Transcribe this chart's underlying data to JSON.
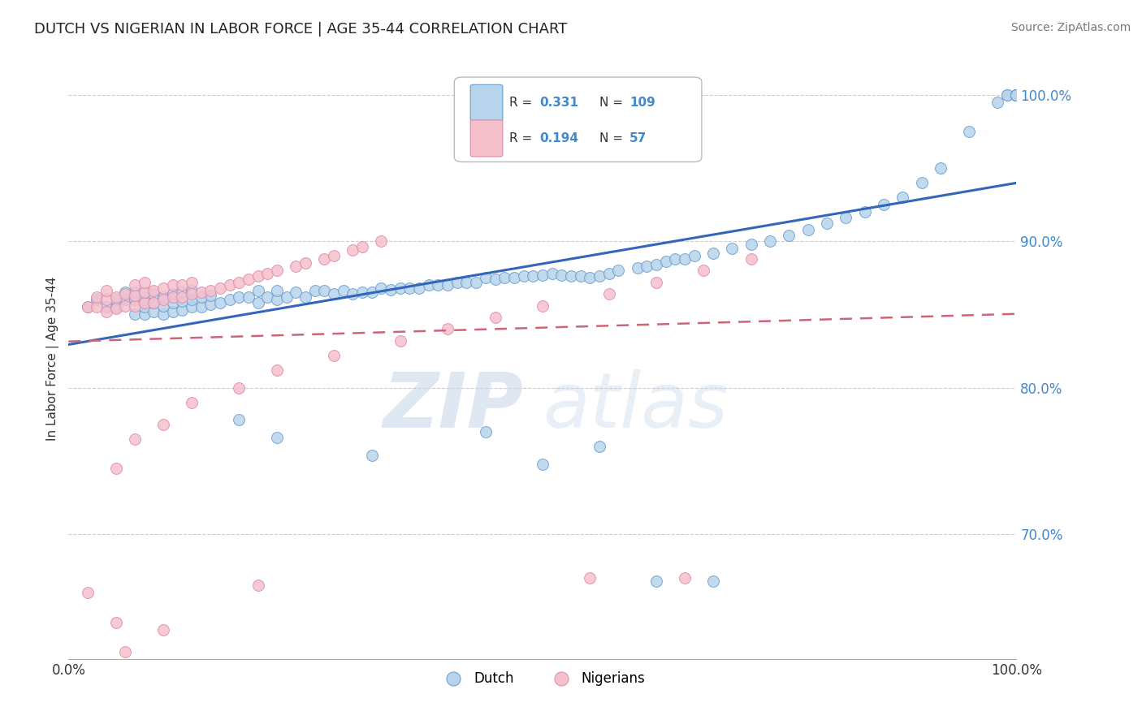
{
  "title": "DUTCH VS NIGERIAN IN LABOR FORCE | AGE 35-44 CORRELATION CHART",
  "source": "Source: ZipAtlas.com",
  "ylabel": "In Labor Force | Age 35-44",
  "xlim": [
    0.0,
    1.0
  ],
  "ylim": [
    0.615,
    1.025
  ],
  "y_ticks": [
    0.7,
    0.8,
    0.9,
    1.0
  ],
  "y_tick_labels": [
    "70.0%",
    "80.0%",
    "90.0%",
    "100.0%"
  ],
  "x_tick_labels": [
    "0.0%",
    "100.0%"
  ],
  "watermark_zip": "ZIP",
  "watermark_atlas": "atlas",
  "dutch_R": 0.331,
  "dutch_N": 109,
  "nigerian_R": 0.194,
  "nigerian_N": 57,
  "dutch_color": "#b8d4ec",
  "dutch_edge": "#6699cc",
  "nigerian_color": "#f5c0cc",
  "nigerian_edge": "#dd88aa",
  "dutch_line_color": "#3366bb",
  "nigerian_line_color": "#cc6677",
  "tick_color": "#4488cc",
  "title_color": "#222222",
  "source_color": "#777777",
  "dot_size": 100,
  "dutch_scatter_x": [
    0.02,
    0.03,
    0.04,
    0.05,
    0.05,
    0.06,
    0.06,
    0.07,
    0.07,
    0.07,
    0.08,
    0.08,
    0.08,
    0.08,
    0.09,
    0.09,
    0.09,
    0.1,
    0.1,
    0.1,
    0.11,
    0.11,
    0.11,
    0.12,
    0.12,
    0.12,
    0.13,
    0.13,
    0.13,
    0.14,
    0.14,
    0.15,
    0.15,
    0.16,
    0.17,
    0.18,
    0.19,
    0.2,
    0.2,
    0.21,
    0.22,
    0.22,
    0.23,
    0.24,
    0.25,
    0.26,
    0.27,
    0.28,
    0.29,
    0.3,
    0.31,
    0.32,
    0.33,
    0.34,
    0.35,
    0.36,
    0.37,
    0.38,
    0.39,
    0.4,
    0.41,
    0.42,
    0.43,
    0.44,
    0.45,
    0.46,
    0.47,
    0.48,
    0.49,
    0.5,
    0.51,
    0.52,
    0.53,
    0.54,
    0.55,
    0.56,
    0.57,
    0.58,
    0.6,
    0.61,
    0.62,
    0.63,
    0.64,
    0.65,
    0.66,
    0.68,
    0.7,
    0.72,
    0.74,
    0.76,
    0.78,
    0.8,
    0.82,
    0.84,
    0.86,
    0.88,
    0.9,
    0.92,
    0.95,
    0.98,
    0.99,
    0.99,
    1.0,
    1.0,
    1.0,
    1.0,
    1.0,
    1.0,
    1.0
  ],
  "dutch_scatter_y": [
    0.855,
    0.86,
    0.855,
    0.855,
    0.86,
    0.86,
    0.865,
    0.85,
    0.86,
    0.865,
    0.85,
    0.855,
    0.86,
    0.865,
    0.852,
    0.858,
    0.864,
    0.85,
    0.856,
    0.862,
    0.852,
    0.858,
    0.864,
    0.853,
    0.859,
    0.865,
    0.855,
    0.86,
    0.866,
    0.855,
    0.862,
    0.857,
    0.863,
    0.858,
    0.86,
    0.862,
    0.862,
    0.858,
    0.866,
    0.862,
    0.86,
    0.866,
    0.862,
    0.865,
    0.862,
    0.866,
    0.866,
    0.864,
    0.866,
    0.864,
    0.865,
    0.865,
    0.868,
    0.867,
    0.868,
    0.868,
    0.868,
    0.87,
    0.87,
    0.87,
    0.872,
    0.872,
    0.872,
    0.875,
    0.874,
    0.875,
    0.875,
    0.876,
    0.876,
    0.877,
    0.878,
    0.877,
    0.876,
    0.876,
    0.875,
    0.876,
    0.878,
    0.88,
    0.882,
    0.883,
    0.884,
    0.886,
    0.888,
    0.888,
    0.89,
    0.892,
    0.895,
    0.898,
    0.9,
    0.904,
    0.908,
    0.912,
    0.916,
    0.92,
    0.925,
    0.93,
    0.94,
    0.95,
    0.975,
    0.995,
    1.0,
    1.0,
    1.0,
    1.0,
    1.0,
    1.0,
    1.0,
    1.0,
    1.0
  ],
  "nigerian_scatter_x": [
    0.02,
    0.03,
    0.03,
    0.04,
    0.04,
    0.04,
    0.05,
    0.05,
    0.06,
    0.06,
    0.07,
    0.07,
    0.07,
    0.08,
    0.08,
    0.08,
    0.09,
    0.09,
    0.1,
    0.1,
    0.11,
    0.11,
    0.12,
    0.12,
    0.13,
    0.13,
    0.14,
    0.15,
    0.16,
    0.17,
    0.18,
    0.19,
    0.2,
    0.21,
    0.22,
    0.24,
    0.25,
    0.27,
    0.28,
    0.3,
    0.31,
    0.33,
    0.05,
    0.07,
    0.1,
    0.13,
    0.18,
    0.22,
    0.28,
    0.35,
    0.4,
    0.45,
    0.5,
    0.57,
    0.62,
    0.67,
    0.72
  ],
  "nigerian_scatter_y": [
    0.855,
    0.855,
    0.862,
    0.852,
    0.86,
    0.866,
    0.854,
    0.862,
    0.856,
    0.864,
    0.856,
    0.863,
    0.87,
    0.858,
    0.865,
    0.872,
    0.858,
    0.866,
    0.86,
    0.868,
    0.862,
    0.87,
    0.862,
    0.87,
    0.864,
    0.872,
    0.865,
    0.866,
    0.868,
    0.87,
    0.872,
    0.874,
    0.876,
    0.878,
    0.88,
    0.883,
    0.885,
    0.888,
    0.89,
    0.894,
    0.896,
    0.9,
    0.745,
    0.765,
    0.775,
    0.79,
    0.8,
    0.812,
    0.822,
    0.832,
    0.84,
    0.848,
    0.856,
    0.864,
    0.872,
    0.88,
    0.888
  ],
  "nigerian_outliers_x": [
    0.02,
    0.05,
    0.06,
    0.1,
    0.2,
    0.55,
    0.65
  ],
  "nigerian_outliers_y": [
    0.66,
    0.64,
    0.62,
    0.635,
    0.665,
    0.67,
    0.67
  ],
  "dutch_low_x": [
    0.18,
    0.22,
    0.32,
    0.44,
    0.5,
    0.56,
    0.62,
    0.68
  ],
  "dutch_low_y": [
    0.778,
    0.766,
    0.754,
    0.77,
    0.748,
    0.76,
    0.668,
    0.668
  ]
}
